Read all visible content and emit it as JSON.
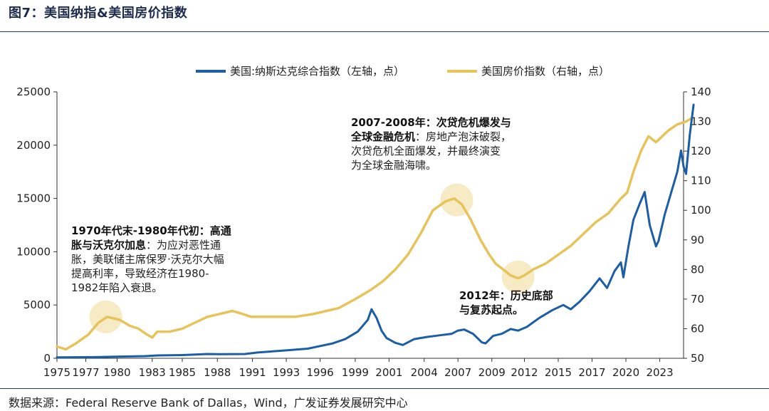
{
  "title": "图7：美国纳指&美国房价指数",
  "source": "数据来源：Federal Reserve Bank of Dallas，Wind，广发证券发展研究中心",
  "colors": {
    "nasdaq": "#1b5ea6",
    "hpi": "#e6c45a",
    "highlight": "#f3e4b2"
  },
  "chart_data": {
    "type": "line",
    "x_tick_labels": [
      "1975",
      "1977",
      "1980",
      "1983",
      "1985",
      "1988",
      "1991",
      "1993",
      "1996",
      "1999",
      "2001",
      "2004",
      "2007",
      "2009",
      "2012",
      "2015",
      "2017",
      "2020",
      "2023"
    ],
    "x_tick_years": [
      1975,
      1977.3,
      1979.8,
      1982.6,
      1985,
      1987.8,
      1990.6,
      1993.3,
      1996,
      1998.8,
      2001.5,
      2004.3,
      2007,
      2009.7,
      2012.3,
      2015,
      2017.7,
      2020.4,
      2023.1
    ],
    "xlim": [
      1975,
      2025
    ],
    "ylim_left": [
      0,
      25000
    ],
    "ylim_right": [
      50,
      140
    ],
    "yticks_left": [
      0,
      5000,
      10000,
      15000,
      20000,
      25000
    ],
    "yticks_right": [
      50,
      60,
      70,
      80,
      90,
      100,
      110,
      120,
      130,
      140
    ],
    "series": [
      {
        "name": "美国:纳斯达克综合指数（左轴，点）",
        "axis": "left",
        "points": [
          [
            1975,
            80
          ],
          [
            1978,
            110
          ],
          [
            1980,
            160
          ],
          [
            1982,
            200
          ],
          [
            1983,
            270
          ],
          [
            1985,
            300
          ],
          [
            1987,
            400
          ],
          [
            1988,
            380
          ],
          [
            1990,
            400
          ],
          [
            1991,
            540
          ],
          [
            1993,
            720
          ],
          [
            1995,
            900
          ],
          [
            1996,
            1150
          ],
          [
            1997,
            1400
          ],
          [
            1998,
            1800
          ],
          [
            1999,
            2500
          ],
          [
            1999.8,
            3600
          ],
          [
            2000.1,
            4600
          ],
          [
            2000.5,
            3800
          ],
          [
            2000.9,
            2600
          ],
          [
            2001.3,
            1900
          ],
          [
            2002,
            1450
          ],
          [
            2002.6,
            1250
          ],
          [
            2003.5,
            1800
          ],
          [
            2004.5,
            2000
          ],
          [
            2005.5,
            2150
          ],
          [
            2006.5,
            2300
          ],
          [
            2007,
            2600
          ],
          [
            2007.5,
            2700
          ],
          [
            2008.2,
            2300
          ],
          [
            2008.9,
            1500
          ],
          [
            2009.2,
            1400
          ],
          [
            2009.8,
            2100
          ],
          [
            2010.5,
            2300
          ],
          [
            2011.2,
            2750
          ],
          [
            2011.8,
            2600
          ],
          [
            2012.5,
            2950
          ],
          [
            2013.5,
            3800
          ],
          [
            2014.5,
            4500
          ],
          [
            2015.4,
            5000
          ],
          [
            2016,
            4600
          ],
          [
            2016.7,
            5300
          ],
          [
            2017.5,
            6300
          ],
          [
            2018.3,
            7500
          ],
          [
            2018.9,
            6600
          ],
          [
            2019.5,
            8200
          ],
          [
            2020,
            9000
          ],
          [
            2020.2,
            7600
          ],
          [
            2020.6,
            10500
          ],
          [
            2021,
            13000
          ],
          [
            2021.5,
            14500
          ],
          [
            2021.9,
            15600
          ],
          [
            2022.3,
            12500
          ],
          [
            2022.8,
            10500
          ],
          [
            2023,
            11000
          ],
          [
            2023.5,
            13500
          ],
          [
            2024,
            15500
          ],
          [
            2024.5,
            17500
          ],
          [
            2024.8,
            19500
          ],
          [
            2025,
            18000
          ],
          [
            2025.2,
            17300
          ],
          [
            2025.5,
            21000
          ],
          [
            2025.8,
            23800
          ]
        ]
      },
      {
        "name": "美国房价指数（右轴，点）",
        "axis": "right",
        "points": [
          [
            1975,
            54
          ],
          [
            1975.7,
            53
          ],
          [
            1976.5,
            55
          ],
          [
            1977.5,
            58
          ],
          [
            1978.3,
            62
          ],
          [
            1979,
            64
          ],
          [
            1980,
            63
          ],
          [
            1980.8,
            61
          ],
          [
            1981.5,
            60
          ],
          [
            1982.2,
            58
          ],
          [
            1982.6,
            57
          ],
          [
            1983,
            59
          ],
          [
            1984,
            59
          ],
          [
            1985,
            60
          ],
          [
            1986,
            62
          ],
          [
            1987,
            64
          ],
          [
            1988,
            65
          ],
          [
            1989,
            66
          ],
          [
            1989.8,
            65
          ],
          [
            1990.5,
            64
          ],
          [
            1992,
            64
          ],
          [
            1994,
            64
          ],
          [
            1995.5,
            65
          ],
          [
            1996.5,
            66
          ],
          [
            1997.5,
            67
          ],
          [
            1998.8,
            70
          ],
          [
            2000,
            73
          ],
          [
            2001,
            76
          ],
          [
            2002,
            80
          ],
          [
            2003,
            85
          ],
          [
            2004,
            92
          ],
          [
            2005,
            100
          ],
          [
            2006,
            103
          ],
          [
            2006.7,
            104
          ],
          [
            2007.3,
            102
          ],
          [
            2008,
            97
          ],
          [
            2008.8,
            90
          ],
          [
            2009.5,
            85
          ],
          [
            2010,
            82
          ],
          [
            2010.6,
            80
          ],
          [
            2011.2,
            78
          ],
          [
            2011.8,
            77
          ],
          [
            2012.3,
            78
          ],
          [
            2013,
            80
          ],
          [
            2014,
            82
          ],
          [
            2015,
            85
          ],
          [
            2016,
            88
          ],
          [
            2017,
            92
          ],
          [
            2018,
            96
          ],
          [
            2019,
            99
          ],
          [
            2020,
            104
          ],
          [
            2020.5,
            106
          ],
          [
            2021,
            113
          ],
          [
            2021.6,
            120
          ],
          [
            2022.2,
            125
          ],
          [
            2022.8,
            123
          ],
          [
            2023.3,
            125
          ],
          [
            2023.8,
            127
          ],
          [
            2024.5,
            129
          ],
          [
            2025.2,
            130
          ],
          [
            2025.6,
            131
          ]
        ]
      }
    ],
    "highlights": [
      {
        "x": 1978.9,
        "y": 64,
        "axis": "right"
      },
      {
        "x": 2006.9,
        "y": 103.5,
        "axis": "right"
      },
      {
        "x": 2011.8,
        "y": 77.5,
        "axis": "right"
      }
    ],
    "annotations": [
      {
        "id": "a1970",
        "lines": [
          {
            "bold": "1970年代末-1980年代初：高通"
          },
          {
            "bold": "胀与沃克尔加息",
            "text": "：为应对恶性通"
          },
          {
            "text": "胀，美联储主席保罗·沃克尔大幅"
          },
          {
            "text": "提高利率，导致经济在1980-"
          },
          {
            "text": "1982年陷入衰退。"
          }
        ]
      },
      {
        "id": "a2007",
        "lines": [
          {
            "bold": "2007-2008年：次贷危机爆发与"
          },
          {
            "bold": "全球金融危机",
            "text": "：房地产泡沫破裂，"
          },
          {
            "text": "次贷危机全面爆发，并最终演变"
          },
          {
            "text": "为全球金融海啸。"
          }
        ]
      },
      {
        "id": "a2012",
        "lines": [
          {
            "bold": "2012年：历史底部"
          },
          {
            "bold": "与复苏起点。"
          }
        ]
      }
    ]
  }
}
